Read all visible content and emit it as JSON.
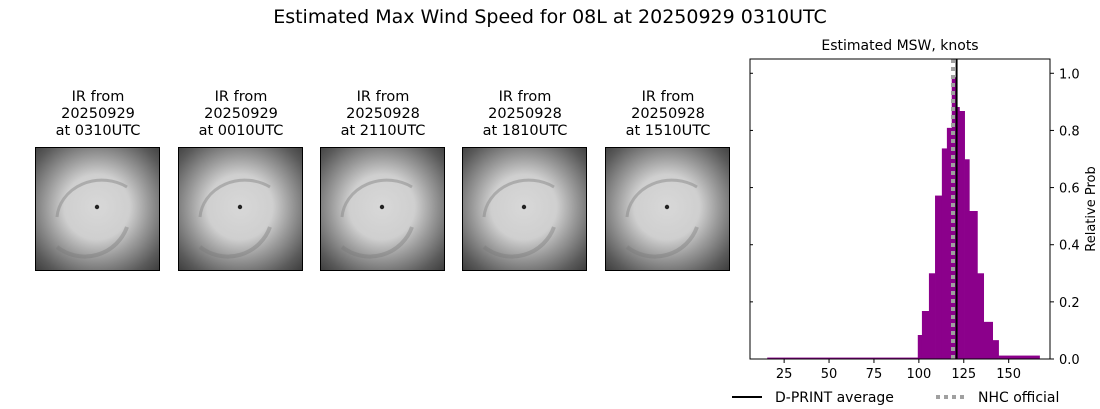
{
  "title": "Estimated Max Wind Speed for 08L at 20250929 0310UTC",
  "panels": [
    {
      "line1": "IR from",
      "line2": "20250929",
      "line3": "at 0310UTC"
    },
    {
      "line1": "IR from",
      "line2": "20250929",
      "line3": "at 0010UTC"
    },
    {
      "line1": "IR from",
      "line2": "20250928",
      "line3": "at 2110UTC"
    },
    {
      "line1": "IR from",
      "line2": "20250928",
      "line3": "at 1810UTC"
    },
    {
      "line1": "IR from",
      "line2": "20250928",
      "line3": "at 1510UTC"
    }
  ],
  "chart_data": {
    "type": "bar",
    "title": "Estimated MSW, knots",
    "xlabel": "",
    "ylabel": "Relative Prob",
    "xlim": [
      6,
      173
    ],
    "ylim": [
      0,
      1.05
    ],
    "xticks": [
      25,
      50,
      75,
      100,
      125,
      150
    ],
    "yticks": [
      0.0,
      0.2,
      0.4,
      0.6,
      0.8,
      1.0
    ],
    "bar_color": "#8b008b",
    "bins": [
      {
        "from": 15.6,
        "to": 99.4,
        "value": 0.005
      },
      {
        "from": 99.4,
        "to": 101.7,
        "value": 0.084
      },
      {
        "from": 101.7,
        "to": 105.6,
        "value": 0.168
      },
      {
        "from": 105.6,
        "to": 109.0,
        "value": 0.3
      },
      {
        "from": 109.0,
        "to": 112.8,
        "value": 0.572
      },
      {
        "from": 112.8,
        "to": 115.6,
        "value": 0.737
      },
      {
        "from": 115.6,
        "to": 118.3,
        "value": 0.809
      },
      {
        "from": 118.3,
        "to": 120.5,
        "value": 0.986
      },
      {
        "from": 120.5,
        "to": 122.6,
        "value": 0.882
      },
      {
        "from": 122.6,
        "to": 125.5,
        "value": 0.868
      },
      {
        "from": 125.5,
        "to": 128.1,
        "value": 0.699
      },
      {
        "from": 128.1,
        "to": 132.6,
        "value": 0.518
      },
      {
        "from": 132.6,
        "to": 136.1,
        "value": 0.3
      },
      {
        "from": 136.1,
        "to": 141.1,
        "value": 0.13
      },
      {
        "from": 141.1,
        "to": 144.4,
        "value": 0.066
      },
      {
        "from": 144.4,
        "to": 167.2,
        "value": 0.012
      }
    ],
    "lines": [
      {
        "name": "D-PRINT average",
        "x": 121,
        "color": "#000000",
        "style": "solid"
      },
      {
        "name": "NHC official",
        "x": 119,
        "color": "#a0a0a0",
        "style": "dotted"
      }
    ],
    "legend": "bottom"
  }
}
